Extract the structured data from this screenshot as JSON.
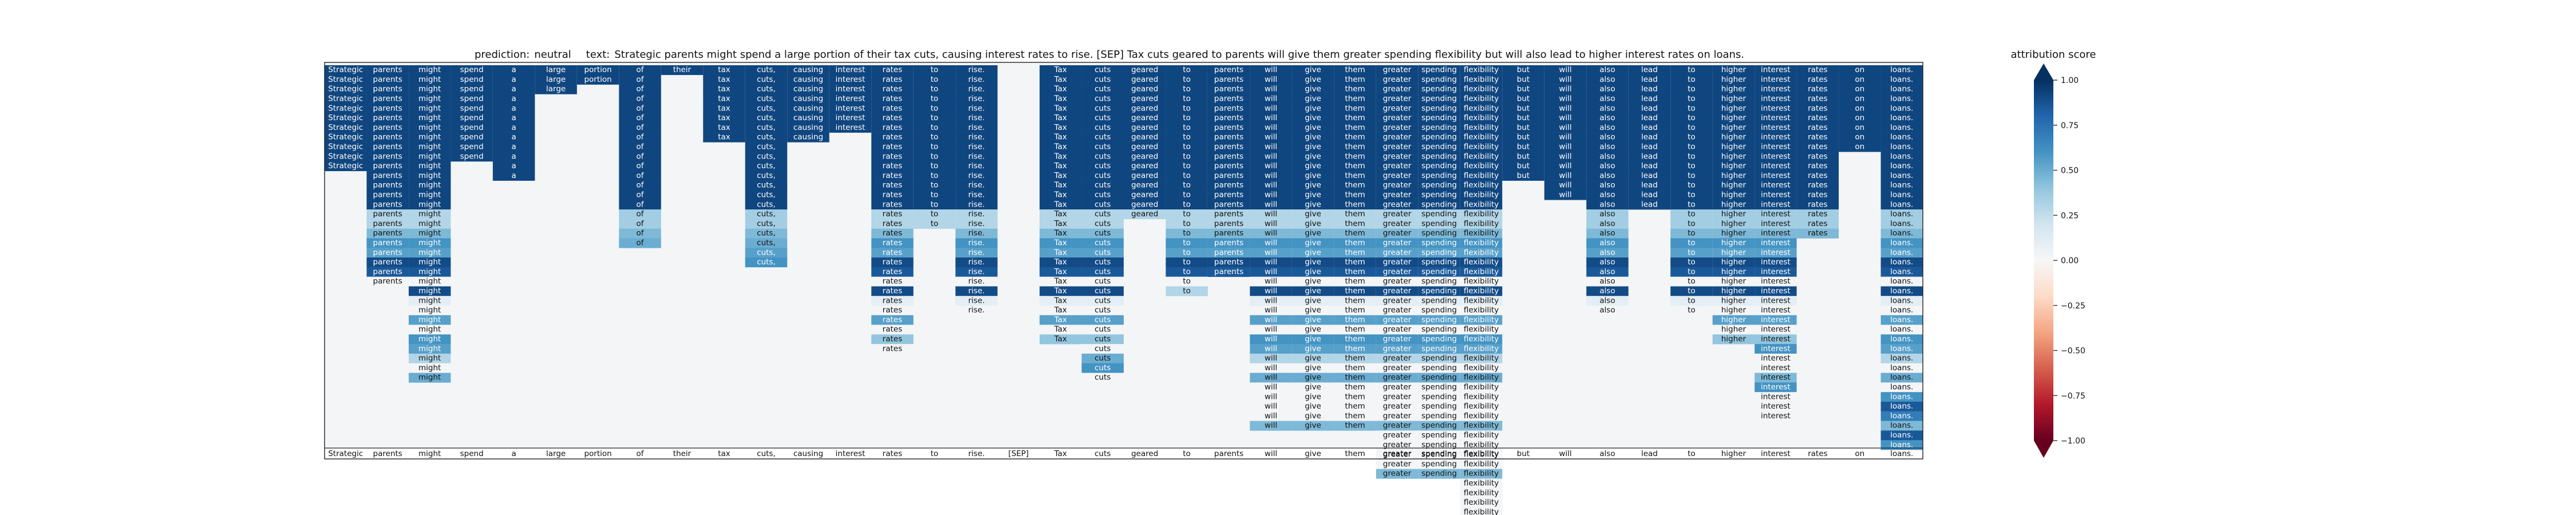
{
  "chart_data": {
    "type": "heatmap",
    "prediction_label": "prediction:",
    "prediction": "neutral",
    "text_label": "text:",
    "text": "Strategic parents might spend a large portion of their tax cuts, causing interest rates to rise. [SEP] Tax cuts geared to parents will give them greater spending flexibility but will also lead to higher interest rates on loans.",
    "tokens": [
      "Strategic",
      "parents",
      "might",
      "spend",
      "a",
      "large",
      "portion",
      "of",
      "their",
      "tax",
      "cuts,",
      "causing",
      "interest",
      "rates",
      "to",
      "rise.",
      "[SEP]",
      "Tax",
      "cuts",
      "geared",
      "to",
      "parents",
      "will",
      "give",
      "them",
      "greater",
      "spending",
      "flexibility",
      "but",
      "will",
      "also",
      "lead",
      "to",
      "higher",
      "interest",
      "rates",
      "on",
      "loans."
    ],
    "colorbar": {
      "label": "attribution score",
      "range": [
        -1.0,
        1.0
      ],
      "ticks": [
        "1.00",
        "0.75",
        "0.50",
        "0.25",
        "0.00",
        "−0.25",
        "−0.50",
        "−0.75",
        "−1.00"
      ],
      "colors": [
        "#67001f",
        "#b2182b",
        "#d6604d",
        "#f4a582",
        "#fddbc7",
        "#f7f7f7",
        "#d1e5f0",
        "#92c5de",
        "#4393c3",
        "#2166ac",
        "#053061"
      ]
    },
    "grid_rows": 40,
    "columns": [
      {
        "start": 0,
        "values": [
          0.92,
          0.92,
          0.92,
          0.92,
          0.92,
          0.92,
          0.92,
          0.92,
          0.92,
          0.92,
          0.92
        ]
      },
      {
        "start": 0,
        "values": [
          0.92,
          0.92,
          0.92,
          0.92,
          0.92,
          0.92,
          0.92,
          0.92,
          0.92,
          0.92,
          0.92,
          0.92,
          0.92,
          0.92,
          0.92,
          0.3,
          0.3,
          0.45,
          0.6,
          0.55,
          0.9,
          0.85,
          0.02
        ]
      },
      {
        "start": 0,
        "values": [
          0.92,
          0.92,
          0.92,
          0.92,
          0.92,
          0.92,
          0.92,
          0.92,
          0.92,
          0.92,
          0.92,
          0.92,
          0.92,
          0.92,
          0.92,
          0.3,
          0.3,
          0.45,
          0.6,
          0.55,
          0.9,
          0.85,
          0.02,
          0.9,
          0.1,
          0.02,
          0.55,
          0.02,
          0.6,
          0.55,
          0.3,
          0.02,
          0.5
        ]
      },
      {
        "start": 0,
        "values": [
          0.92,
          0.92,
          0.92,
          0.92,
          0.92,
          0.92,
          0.92,
          0.92,
          0.92,
          0.92
        ]
      },
      {
        "start": 0,
        "values": [
          0.92,
          0.92,
          0.92,
          0.92,
          0.92,
          0.92,
          0.92,
          0.92,
          0.92,
          0.92,
          0.92,
          0.92
        ]
      },
      {
        "start": 0,
        "values": [
          0.92,
          0.92,
          0.92
        ]
      },
      {
        "start": 0,
        "values": [
          0.92,
          0.92
        ]
      },
      {
        "start": 0,
        "values": [
          0.92,
          0.92,
          0.92,
          0.92,
          0.92,
          0.92,
          0.92,
          0.92,
          0.92,
          0.92,
          0.92,
          0.92,
          0.92,
          0.92,
          0.92,
          0.35,
          0.35,
          0.45,
          0.5
        ]
      },
      {
        "start": 0,
        "values": [
          0.92
        ]
      },
      {
        "start": 0,
        "values": [
          0.92,
          0.92,
          0.92,
          0.92,
          0.92,
          0.92,
          0.92,
          0.92
        ]
      },
      {
        "start": 0,
        "values": [
          0.92,
          0.92,
          0.92,
          0.92,
          0.92,
          0.92,
          0.92,
          0.92,
          0.92,
          0.92,
          0.92,
          0.92,
          0.92,
          0.92,
          0.92,
          0.35,
          0.35,
          0.45,
          0.5,
          0.55,
          0.6
        ]
      },
      {
        "start": 0,
        "values": [
          0.92,
          0.92,
          0.92,
          0.92,
          0.92,
          0.92,
          0.92,
          0.92
        ]
      },
      {
        "start": 0,
        "values": [
          0.92,
          0.92,
          0.92,
          0.92,
          0.92,
          0.92,
          0.92
        ]
      },
      {
        "start": 0,
        "values": [
          0.92,
          0.92,
          0.92,
          0.92,
          0.92,
          0.92,
          0.92,
          0.92,
          0.92,
          0.92,
          0.92,
          0.92,
          0.92,
          0.92,
          0.92,
          0.3,
          0.3,
          0.45,
          0.6,
          0.55,
          0.9,
          0.85,
          0.02,
          0.9,
          0.1,
          0.02,
          0.55,
          0.02,
          0.4,
          0.02
        ]
      },
      {
        "start": 0,
        "values": [
          0.92,
          0.92,
          0.92,
          0.92,
          0.92,
          0.92,
          0.92,
          0.92,
          0.92,
          0.92,
          0.92,
          0.92,
          0.92,
          0.92,
          0.92,
          0.3,
          0.3
        ]
      },
      {
        "start": 0,
        "values": [
          0.92,
          0.92,
          0.92,
          0.92,
          0.92,
          0.92,
          0.92,
          0.92,
          0.92,
          0.92,
          0.92,
          0.92,
          0.92,
          0.92,
          0.92,
          0.3,
          0.3,
          0.45,
          0.6,
          0.55,
          0.9,
          0.85,
          0.02,
          0.9,
          0.1,
          0.02
        ]
      },
      {
        "start": 0,
        "values": []
      },
      {
        "start": 0,
        "values": [
          0.92,
          0.92,
          0.92,
          0.92,
          0.92,
          0.92,
          0.92,
          0.92,
          0.92,
          0.92,
          0.92,
          0.92,
          0.92,
          0.92,
          0.92,
          0.3,
          0.3,
          0.45,
          0.6,
          0.55,
          0.9,
          0.85,
          0.02,
          0.9,
          0.1,
          0.02,
          0.55,
          0.02,
          0.4
        ]
      },
      {
        "start": 0,
        "values": [
          0.92,
          0.92,
          0.92,
          0.92,
          0.92,
          0.92,
          0.92,
          0.92,
          0.92,
          0.92,
          0.92,
          0.92,
          0.92,
          0.92,
          0.92,
          0.3,
          0.3,
          0.45,
          0.6,
          0.55,
          0.9,
          0.85,
          0.02,
          0.9,
          0.1,
          0.02,
          0.55,
          0.02,
          0.4,
          0.02,
          0.5,
          0.6,
          0.02
        ]
      },
      {
        "start": 0,
        "values": [
          0.92,
          0.92,
          0.92,
          0.92,
          0.92,
          0.92,
          0.92,
          0.92,
          0.92,
          0.92,
          0.92,
          0.92,
          0.92,
          0.92,
          0.92,
          0.3
        ]
      },
      {
        "start": 0,
        "values": [
          0.92,
          0.92,
          0.92,
          0.92,
          0.92,
          0.92,
          0.92,
          0.92,
          0.92,
          0.92,
          0.92,
          0.92,
          0.92,
          0.92,
          0.92,
          0.3,
          0.3,
          0.45,
          0.6,
          0.55,
          0.9,
          0.85,
          0.02,
          0.3
        ]
      },
      {
        "start": 0,
        "values": [
          0.92,
          0.92,
          0.92,
          0.92,
          0.92,
          0.92,
          0.92,
          0.92,
          0.92,
          0.92,
          0.92,
          0.92,
          0.92,
          0.92,
          0.92,
          0.3,
          0.3,
          0.45,
          0.6,
          0.55,
          0.9,
          0.85
        ]
      },
      {
        "start": 0,
        "values": [
          0.92,
          0.92,
          0.92,
          0.92,
          0.92,
          0.92,
          0.92,
          0.92,
          0.92,
          0.92,
          0.92,
          0.92,
          0.92,
          0.92,
          0.92,
          0.3,
          0.3,
          0.45,
          0.6,
          0.55,
          0.9,
          0.85,
          0.02,
          0.9,
          0.1,
          0.02,
          0.55,
          0.02,
          0.6,
          0.55,
          0.3,
          0.02,
          0.5,
          0.02,
          0.02,
          0.02,
          0.02,
          0.45
        ]
      },
      {
        "start": 0,
        "values": [
          0.92,
          0.92,
          0.92,
          0.92,
          0.92,
          0.92,
          0.92,
          0.92,
          0.92,
          0.92,
          0.92,
          0.92,
          0.92,
          0.92,
          0.92,
          0.3,
          0.3,
          0.45,
          0.6,
          0.55,
          0.9,
          0.85,
          0.02,
          0.9,
          0.1,
          0.02,
          0.55,
          0.02,
          0.6,
          0.55,
          0.3,
          0.02,
          0.5,
          0.02,
          0.02,
          0.02,
          0.02,
          0.45
        ]
      },
      {
        "start": 0,
        "values": [
          0.92,
          0.92,
          0.92,
          0.92,
          0.92,
          0.92,
          0.92,
          0.92,
          0.92,
          0.92,
          0.92,
          0.92,
          0.92,
          0.92,
          0.92,
          0.3,
          0.3,
          0.45,
          0.6,
          0.55,
          0.9,
          0.85,
          0.02,
          0.9,
          0.1,
          0.02,
          0.55,
          0.02,
          0.6,
          0.55,
          0.3,
          0.02,
          0.5,
          0.02,
          0.02,
          0.02,
          0.02,
          0.45
        ]
      },
      {
        "start": 0,
        "values": [
          0.92,
          0.92,
          0.92,
          0.92,
          0.92,
          0.92,
          0.92,
          0.92,
          0.92,
          0.92,
          0.92,
          0.92,
          0.92,
          0.92,
          0.92,
          0.3,
          0.3,
          0.45,
          0.6,
          0.55,
          0.9,
          0.85,
          0.02,
          0.9,
          0.1,
          0.02,
          0.55,
          0.02,
          0.6,
          0.55,
          0.3,
          0.02,
          0.5,
          0.02,
          0.02,
          0.02,
          0.02,
          0.45,
          0.02,
          0.02,
          0.02,
          0.02,
          0.45
        ]
      },
      {
        "start": 0,
        "values": [
          0.92,
          0.92,
          0.92,
          0.92,
          0.92,
          0.92,
          0.92,
          0.92,
          0.92,
          0.92,
          0.92,
          0.92,
          0.92,
          0.92,
          0.92,
          0.3,
          0.3,
          0.45,
          0.6,
          0.55,
          0.9,
          0.85,
          0.02,
          0.9,
          0.1,
          0.02,
          0.55,
          0.02,
          0.6,
          0.55,
          0.3,
          0.02,
          0.5,
          0.02,
          0.02,
          0.02,
          0.02,
          0.45,
          0.02,
          0.02,
          0.02,
          0.02,
          0.45
        ]
      },
      {
        "start": 0,
        "values": [
          0.92,
          0.92,
          0.92,
          0.92,
          0.92,
          0.92,
          0.92,
          0.92,
          0.92,
          0.92,
          0.92,
          0.92,
          0.92,
          0.92,
          0.92,
          0.3,
          0.3,
          0.45,
          0.6,
          0.55,
          0.9,
          0.85,
          0.02,
          0.9,
          0.1,
          0.02,
          0.55,
          0.02,
          0.6,
          0.55,
          0.3,
          0.02,
          0.5,
          0.02,
          0.02,
          0.02,
          0.02,
          0.45,
          0.02,
          0.02,
          0.02,
          0.02,
          0.45,
          0.02,
          0.02,
          0.02,
          0.02
        ]
      },
      {
        "start": 0,
        "values": [
          0.92,
          0.92,
          0.92,
          0.92,
          0.92,
          0.92,
          0.92,
          0.92,
          0.92,
          0.92,
          0.92,
          0.92
        ]
      },
      {
        "start": 0,
        "values": [
          0.92,
          0.92,
          0.92,
          0.92,
          0.92,
          0.92,
          0.92,
          0.92,
          0.92,
          0.92,
          0.92,
          0.92,
          0.92,
          0.92
        ]
      },
      {
        "start": 0,
        "values": [
          0.92,
          0.92,
          0.92,
          0.92,
          0.92,
          0.92,
          0.92,
          0.92,
          0.92,
          0.92,
          0.92,
          0.92,
          0.92,
          0.92,
          0.92,
          0.35,
          0.35,
          0.45,
          0.6,
          0.55,
          0.9,
          0.85,
          0.02,
          0.9,
          0.1,
          0.02
        ]
      },
      {
        "start": 0,
        "values": [
          0.92,
          0.92,
          0.92,
          0.92,
          0.92,
          0.92,
          0.92,
          0.92,
          0.92,
          0.92,
          0.92,
          0.92,
          0.92,
          0.92,
          0.92
        ]
      },
      {
        "start": 0,
        "values": [
          0.92,
          0.92,
          0.92,
          0.92,
          0.92,
          0.92,
          0.92,
          0.92,
          0.92,
          0.92,
          0.92,
          0.92,
          0.92,
          0.92,
          0.92,
          0.35,
          0.35,
          0.45,
          0.6,
          0.55,
          0.9,
          0.85,
          0.02,
          0.9,
          0.1,
          0.02
        ]
      },
      {
        "start": 0,
        "values": [
          0.92,
          0.92,
          0.92,
          0.92,
          0.92,
          0.92,
          0.92,
          0.92,
          0.92,
          0.92,
          0.92,
          0.92,
          0.92,
          0.92,
          0.92,
          0.35,
          0.35,
          0.45,
          0.6,
          0.55,
          0.9,
          0.85,
          0.02,
          0.9,
          0.1,
          0.02,
          0.55,
          0.02,
          0.4
        ]
      },
      {
        "start": 0,
        "values": [
          0.92,
          0.92,
          0.92,
          0.92,
          0.92,
          0.92,
          0.92,
          0.92,
          0.92,
          0.92,
          0.92,
          0.92,
          0.92,
          0.92,
          0.92,
          0.35,
          0.35,
          0.45,
          0.6,
          0.55,
          0.9,
          0.85,
          0.02,
          0.9,
          0.1,
          0.02,
          0.55,
          0.02,
          0.4,
          0.6,
          0.02,
          0.02,
          0.45,
          0.6,
          0.02,
          0.02,
          0.02
        ]
      },
      {
        "start": 0,
        "values": [
          0.92,
          0.92,
          0.92,
          0.92,
          0.92,
          0.92,
          0.92,
          0.92,
          0.92,
          0.92,
          0.92,
          0.92,
          0.92,
          0.92,
          0.92,
          0.35,
          0.35,
          0.45
        ]
      },
      {
        "start": 0,
        "values": [
          0.92,
          0.92,
          0.92,
          0.92,
          0.92,
          0.92,
          0.92,
          0.92,
          0.92
        ]
      },
      {
        "start": 0,
        "values": [
          0.92,
          0.92,
          0.92,
          0.92,
          0.92,
          0.92,
          0.92,
          0.92,
          0.92,
          0.92,
          0.92,
          0.92,
          0.92,
          0.92,
          0.92,
          0.35,
          0.35,
          0.45,
          0.6,
          0.55,
          0.9,
          0.85,
          0.02,
          0.9,
          0.1,
          0.02,
          0.55,
          0.02,
          0.6,
          0.55,
          0.3,
          0.02,
          0.5,
          0.02,
          0.6,
          0.85,
          0.7,
          0.45,
          0.85,
          0.6
        ]
      }
    ]
  }
}
